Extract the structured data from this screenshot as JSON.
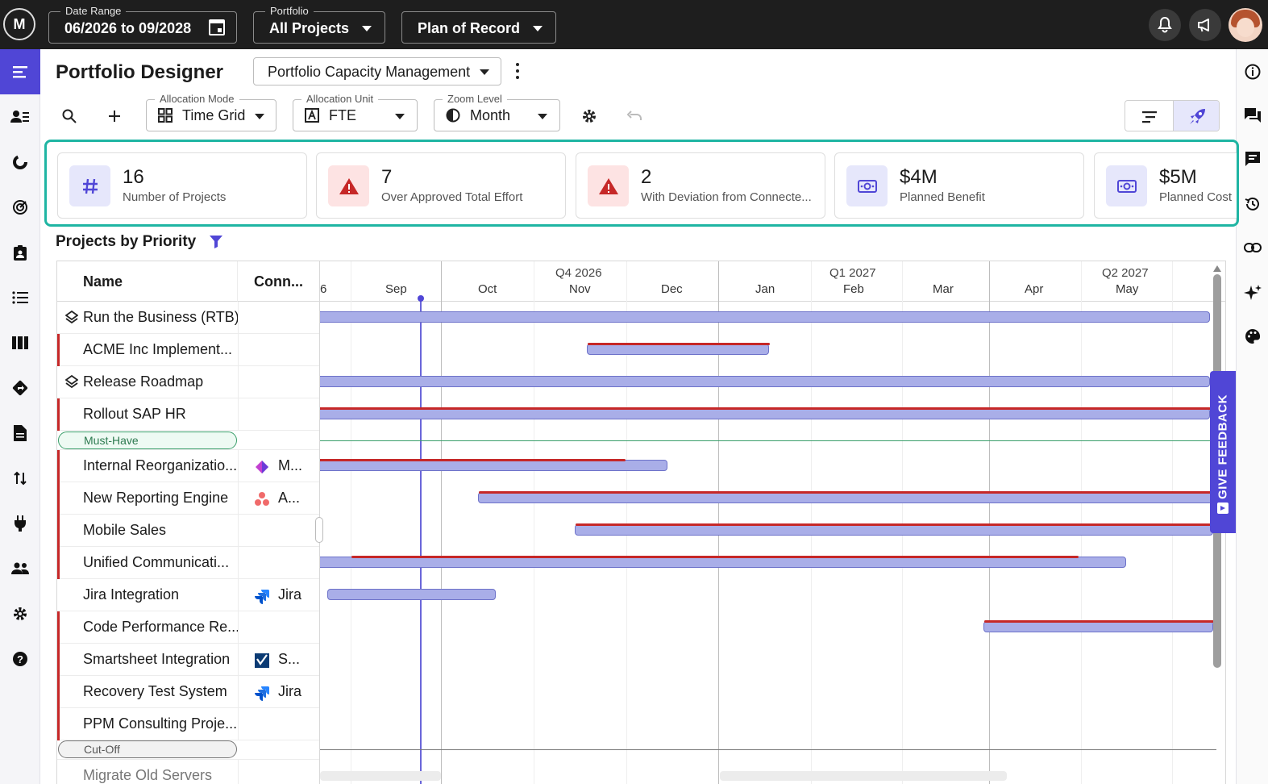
{
  "topbar": {
    "logo": "M",
    "date_range_label": "Date Range",
    "date_range_value": "06/2026 to 09/2028",
    "portfolio_label": "Portfolio",
    "portfolio_value": "All Projects",
    "plan_value": "Plan of Record",
    "icons": [
      "bell-icon",
      "megaphone-icon",
      "avatar"
    ]
  },
  "leftnav": {
    "items": [
      "menu-collapse-icon",
      "resource-icon",
      "chart-icon",
      "target-icon",
      "clipboard-icon",
      "list-icon",
      "columns-icon",
      "roadmap-icon",
      "document-icon",
      "sort-arrows-icon",
      "plug-icon",
      "people-icon",
      "gear-icon",
      "help-icon"
    ]
  },
  "rightnav": {
    "items": [
      "info-icon",
      "chat-icon",
      "comment-icon",
      "history-icon",
      "link-icon",
      "sparkle-icon",
      "palette-icon"
    ]
  },
  "header": {
    "title": "Portfolio Designer",
    "view_name": "Portfolio Capacity Management"
  },
  "toolbar": {
    "allocation_mode_label": "Allocation Mode",
    "allocation_mode_value": "Time Grid",
    "allocation_unit_label": "Allocation Unit",
    "allocation_unit_value": "FTE",
    "zoom_label": "Zoom Level",
    "zoom_value": "Month"
  },
  "metrics": [
    {
      "value": "16",
      "label": "Number of Projects",
      "icon": "hash-icon"
    },
    {
      "value": "7",
      "label": "Over Approved Total Effort",
      "icon": "warning-icon"
    },
    {
      "value": "2",
      "label": "With Deviation from Connecte...",
      "icon": "warning-icon"
    },
    {
      "value": "$4M",
      "label": "Planned Benefit",
      "icon": "money-icon"
    },
    {
      "value": "$5M",
      "label": "Planned Cost",
      "icon": "money-icon"
    }
  ],
  "section": {
    "title": "Projects by Priority"
  },
  "grid": {
    "col_name": "Name",
    "col_conn": "Conn...",
    "rows": [
      {
        "name": "Run the Business (RTB)",
        "conn": "",
        "group": true
      },
      {
        "name": "ACME Inc Implement...",
        "conn": ""
      },
      {
        "name": "Release Roadmap",
        "conn": "",
        "group": true
      },
      {
        "name": "Rollout SAP HR",
        "conn": ""
      },
      {
        "name": "Must-Have",
        "pill": "green"
      },
      {
        "name": "Internal Reorganizatio...",
        "conn": "M..."
      },
      {
        "name": "New Reporting Engine",
        "conn": "A..."
      },
      {
        "name": "Mobile Sales",
        "conn": ""
      },
      {
        "name": "Unified Communicati...",
        "conn": ""
      },
      {
        "name": "Jira Integration",
        "conn": "Jira"
      },
      {
        "name": "Code Performance Re...",
        "conn": ""
      },
      {
        "name": "Smartsheet Integration",
        "conn": "S..."
      },
      {
        "name": "Recovery Test System",
        "conn": "Jira"
      },
      {
        "name": "PPM Consulting Proje...",
        "conn": ""
      },
      {
        "name": "Cut-Off",
        "pill": "gray"
      },
      {
        "name": "Migrate Old Servers",
        "conn": ""
      }
    ]
  },
  "timeline": {
    "partial_left": "6",
    "quarters": [
      "Q4 2026",
      "Q1 2027",
      "Q2 2027"
    ],
    "months": [
      "Sep",
      "Oct",
      "Nov",
      "Dec",
      "Jan",
      "Feb",
      "Mar",
      "Apr",
      "May"
    ]
  },
  "feedback": "GIVE FEEDBACK"
}
